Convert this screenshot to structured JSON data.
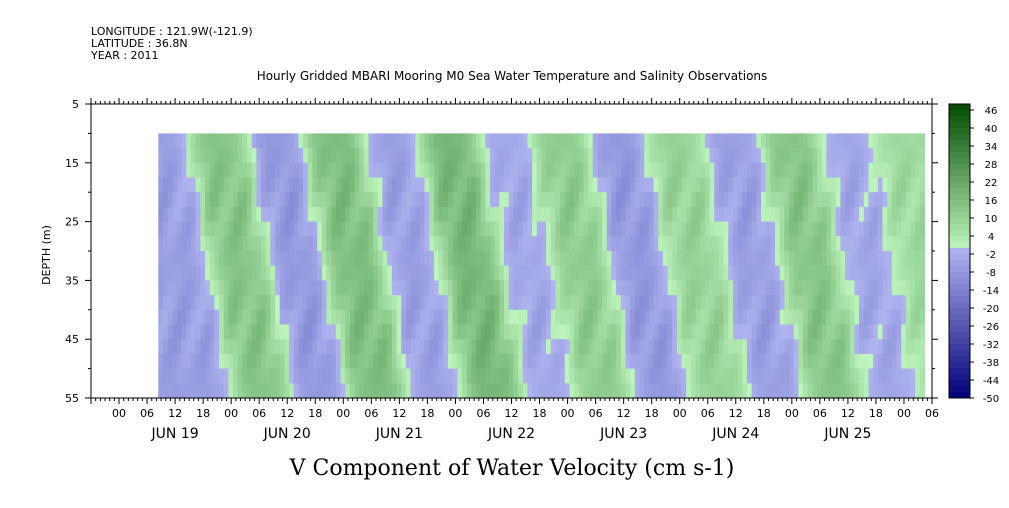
{
  "meta": {
    "longitude": "LONGITUDE : 121.9W(-121.9)",
    "latitude": "LATITUDE : 36.8N",
    "year": "YEAR : 2011"
  },
  "title": "Hourly Gridded MBARI Mooring M0 Sea Water Temperature and Salinity Observations",
  "variable_title": "V Component of Water Velocity (cm s-1)",
  "chart_data": {
    "type": "heatmap",
    "title": "Hourly Gridded MBARI Mooring M0 Sea Water Temperature and Salinity Observations",
    "xlabel": "",
    "ylabel": "DEPTH (m)",
    "colorbar_label": "V Component of Water Velocity (cm s-1)",
    "x_start_hour": 8.4,
    "x_end_hour": 172,
    "x_axis_start_hour": -6,
    "x_axis_end_hour": 174,
    "x_tick_hours": [
      "00",
      "06",
      "12",
      "18"
    ],
    "day_labels": [
      "JUN 19",
      "JUN 20",
      "JUN 21",
      "JUN 22",
      "JUN 23",
      "JUN 24",
      "JUN 25"
    ],
    "ylim": [
      5,
      55
    ],
    "y_reversed": true,
    "y_ticks": [
      5,
      15,
      25,
      35,
      45,
      55
    ],
    "data_depth_range": [
      10,
      55
    ],
    "colorbar": {
      "levels": [
        48,
        46,
        44,
        42,
        40,
        38,
        36,
        34,
        32,
        30,
        28,
        26,
        24,
        22,
        20,
        18,
        16,
        14,
        12,
        10,
        8,
        6,
        4,
        2,
        0,
        -2,
        -4,
        -6,
        -8,
        -10,
        -12,
        -14,
        -16,
        -18,
        -20,
        -22,
        -24,
        -26,
        -28,
        -30,
        -32,
        -34,
        -36,
        -38,
        -40,
        -42,
        -44,
        -46,
        -48,
        -50
      ],
      "labels": [
        "46",
        "40",
        "34",
        "28",
        "22",
        "16",
        "10",
        "4",
        "-2",
        "-8",
        "-14",
        "-20",
        "-26",
        "-32",
        "-38",
        "-44",
        "-50"
      ]
    },
    "approx_pattern": {
      "description_values_cm_s": "alternating positive and negative bands, mostly 0 to 16",
      "band_centers_hour": [
        8,
        21,
        33,
        45,
        58,
        70,
        82,
        94,
        106,
        118,
        131,
        143,
        155,
        167
      ],
      "band_values": [
        -6,
        14,
        -8,
        16,
        -6,
        18,
        -4,
        12,
        -8,
        10,
        -6,
        14,
        -4,
        8
      ]
    }
  }
}
